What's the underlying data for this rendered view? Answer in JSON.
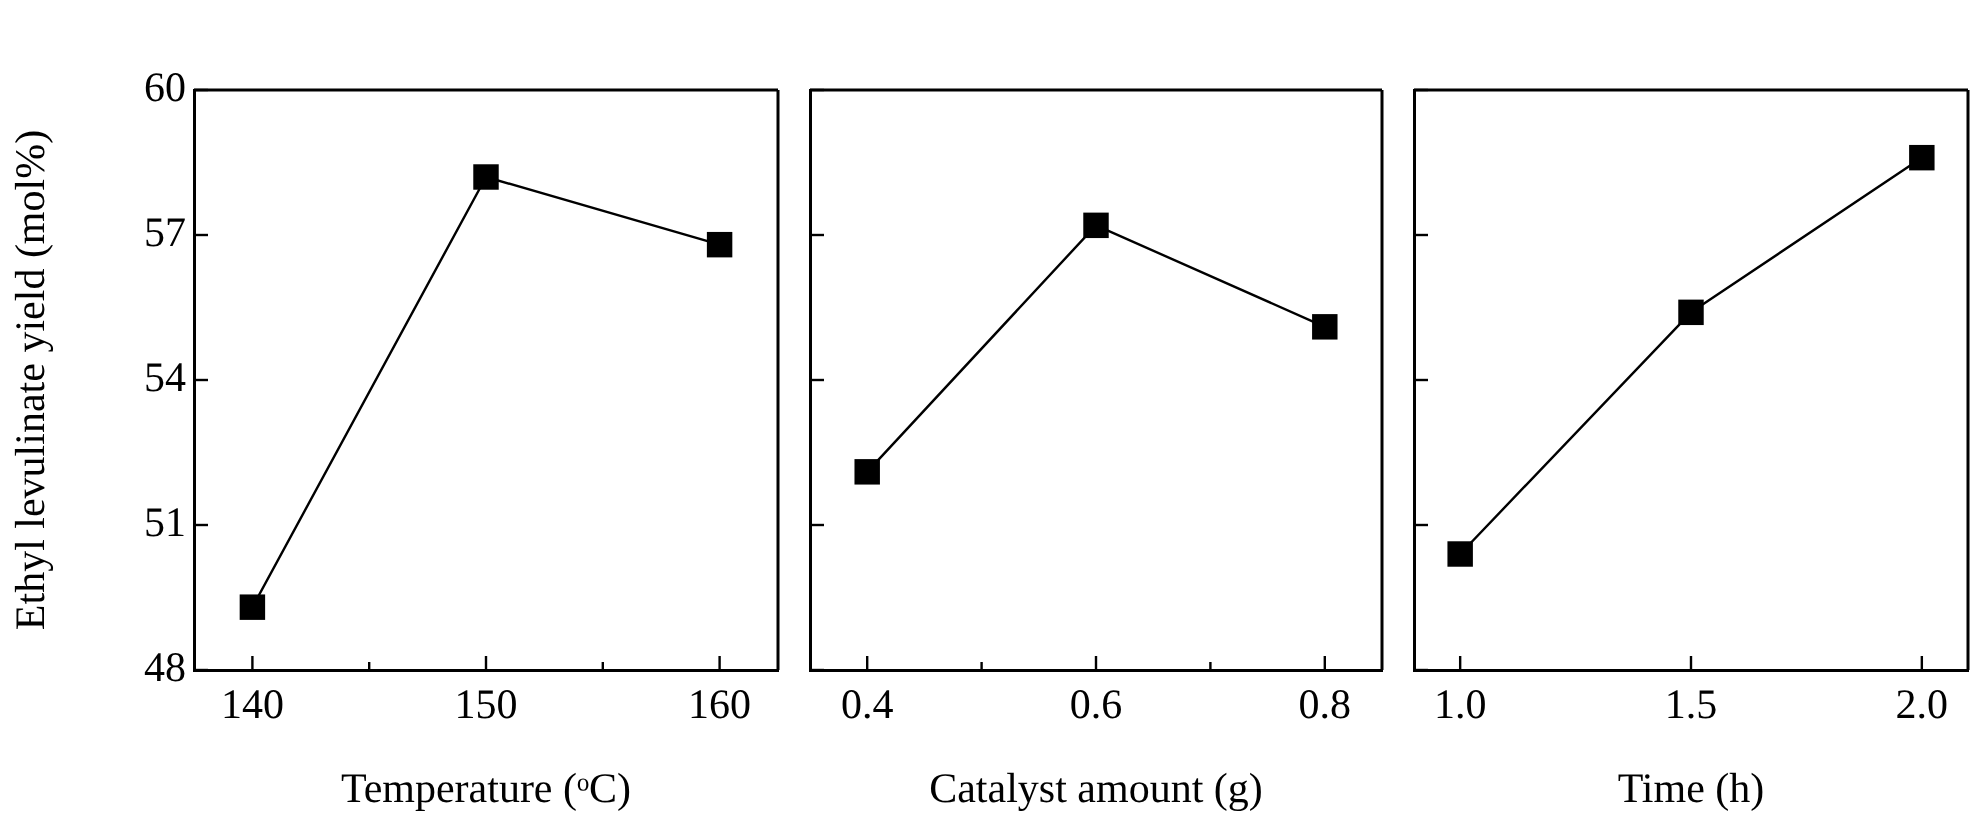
{
  "chart_data": [
    {
      "type": "line",
      "ylabel": "Ethyl levulinate yield (mol%)",
      "xlabel": "Temperature (ᵒC)",
      "x": [
        140,
        150,
        160
      ],
      "series": [
        {
          "color": "#000000",
          "values": [
            49.3,
            58.2,
            56.8
          ]
        }
      ],
      "xlim": [
        137.5,
        162.5
      ],
      "xticks": [
        140,
        {
          "value": 145,
          "label": null
        },
        150,
        {
          "value": 155,
          "label": null
        },
        160
      ],
      "ylim": [
        48,
        60
      ],
      "yticks": [
        48,
        51,
        54,
        57,
        60
      ],
      "marker": "square",
      "line_style": "solid",
      "legend": false,
      "grid": false
    },
    {
      "type": "line",
      "xlabel": "Catalyst amount (g)",
      "x": [
        0.4,
        0.6,
        0.8
      ],
      "series": [
        {
          "color": "#000000",
          "values": [
            52.1,
            57.2,
            55.1
          ]
        }
      ],
      "xlim": [
        0.35,
        0.85
      ],
      "xticks": [
        0.4,
        {
          "value": 0.5,
          "label": null
        },
        0.6,
        {
          "value": 0.7,
          "label": null
        },
        0.8
      ],
      "ylim": [
        48,
        60
      ],
      "yticks": [
        48,
        51,
        54,
        57,
        60
      ],
      "tick_labels": "x",
      "marker": "square",
      "line_style": "solid",
      "legend": false,
      "grid": false
    },
    {
      "type": "line",
      "xlabel": "Time (h)",
      "x": [
        1.0,
        1.5,
        2.0
      ],
      "series": [
        {
          "color": "#000000",
          "values": [
            50.4,
            55.4,
            58.6
          ]
        }
      ],
      "xlim": [
        0.9,
        2.1
      ],
      "xticks": [
        {
          "value": 1.0,
          "label": "1.0"
        },
        1.5,
        {
          "value": 2.0,
          "label": "2.0"
        }
      ],
      "ylim": [
        48,
        60
      ],
      "yticks": [
        48,
        51,
        54,
        57,
        60
      ],
      "tick_labels": "x",
      "marker": "square",
      "line_style": "solid",
      "legend": false,
      "grid": false
    }
  ]
}
